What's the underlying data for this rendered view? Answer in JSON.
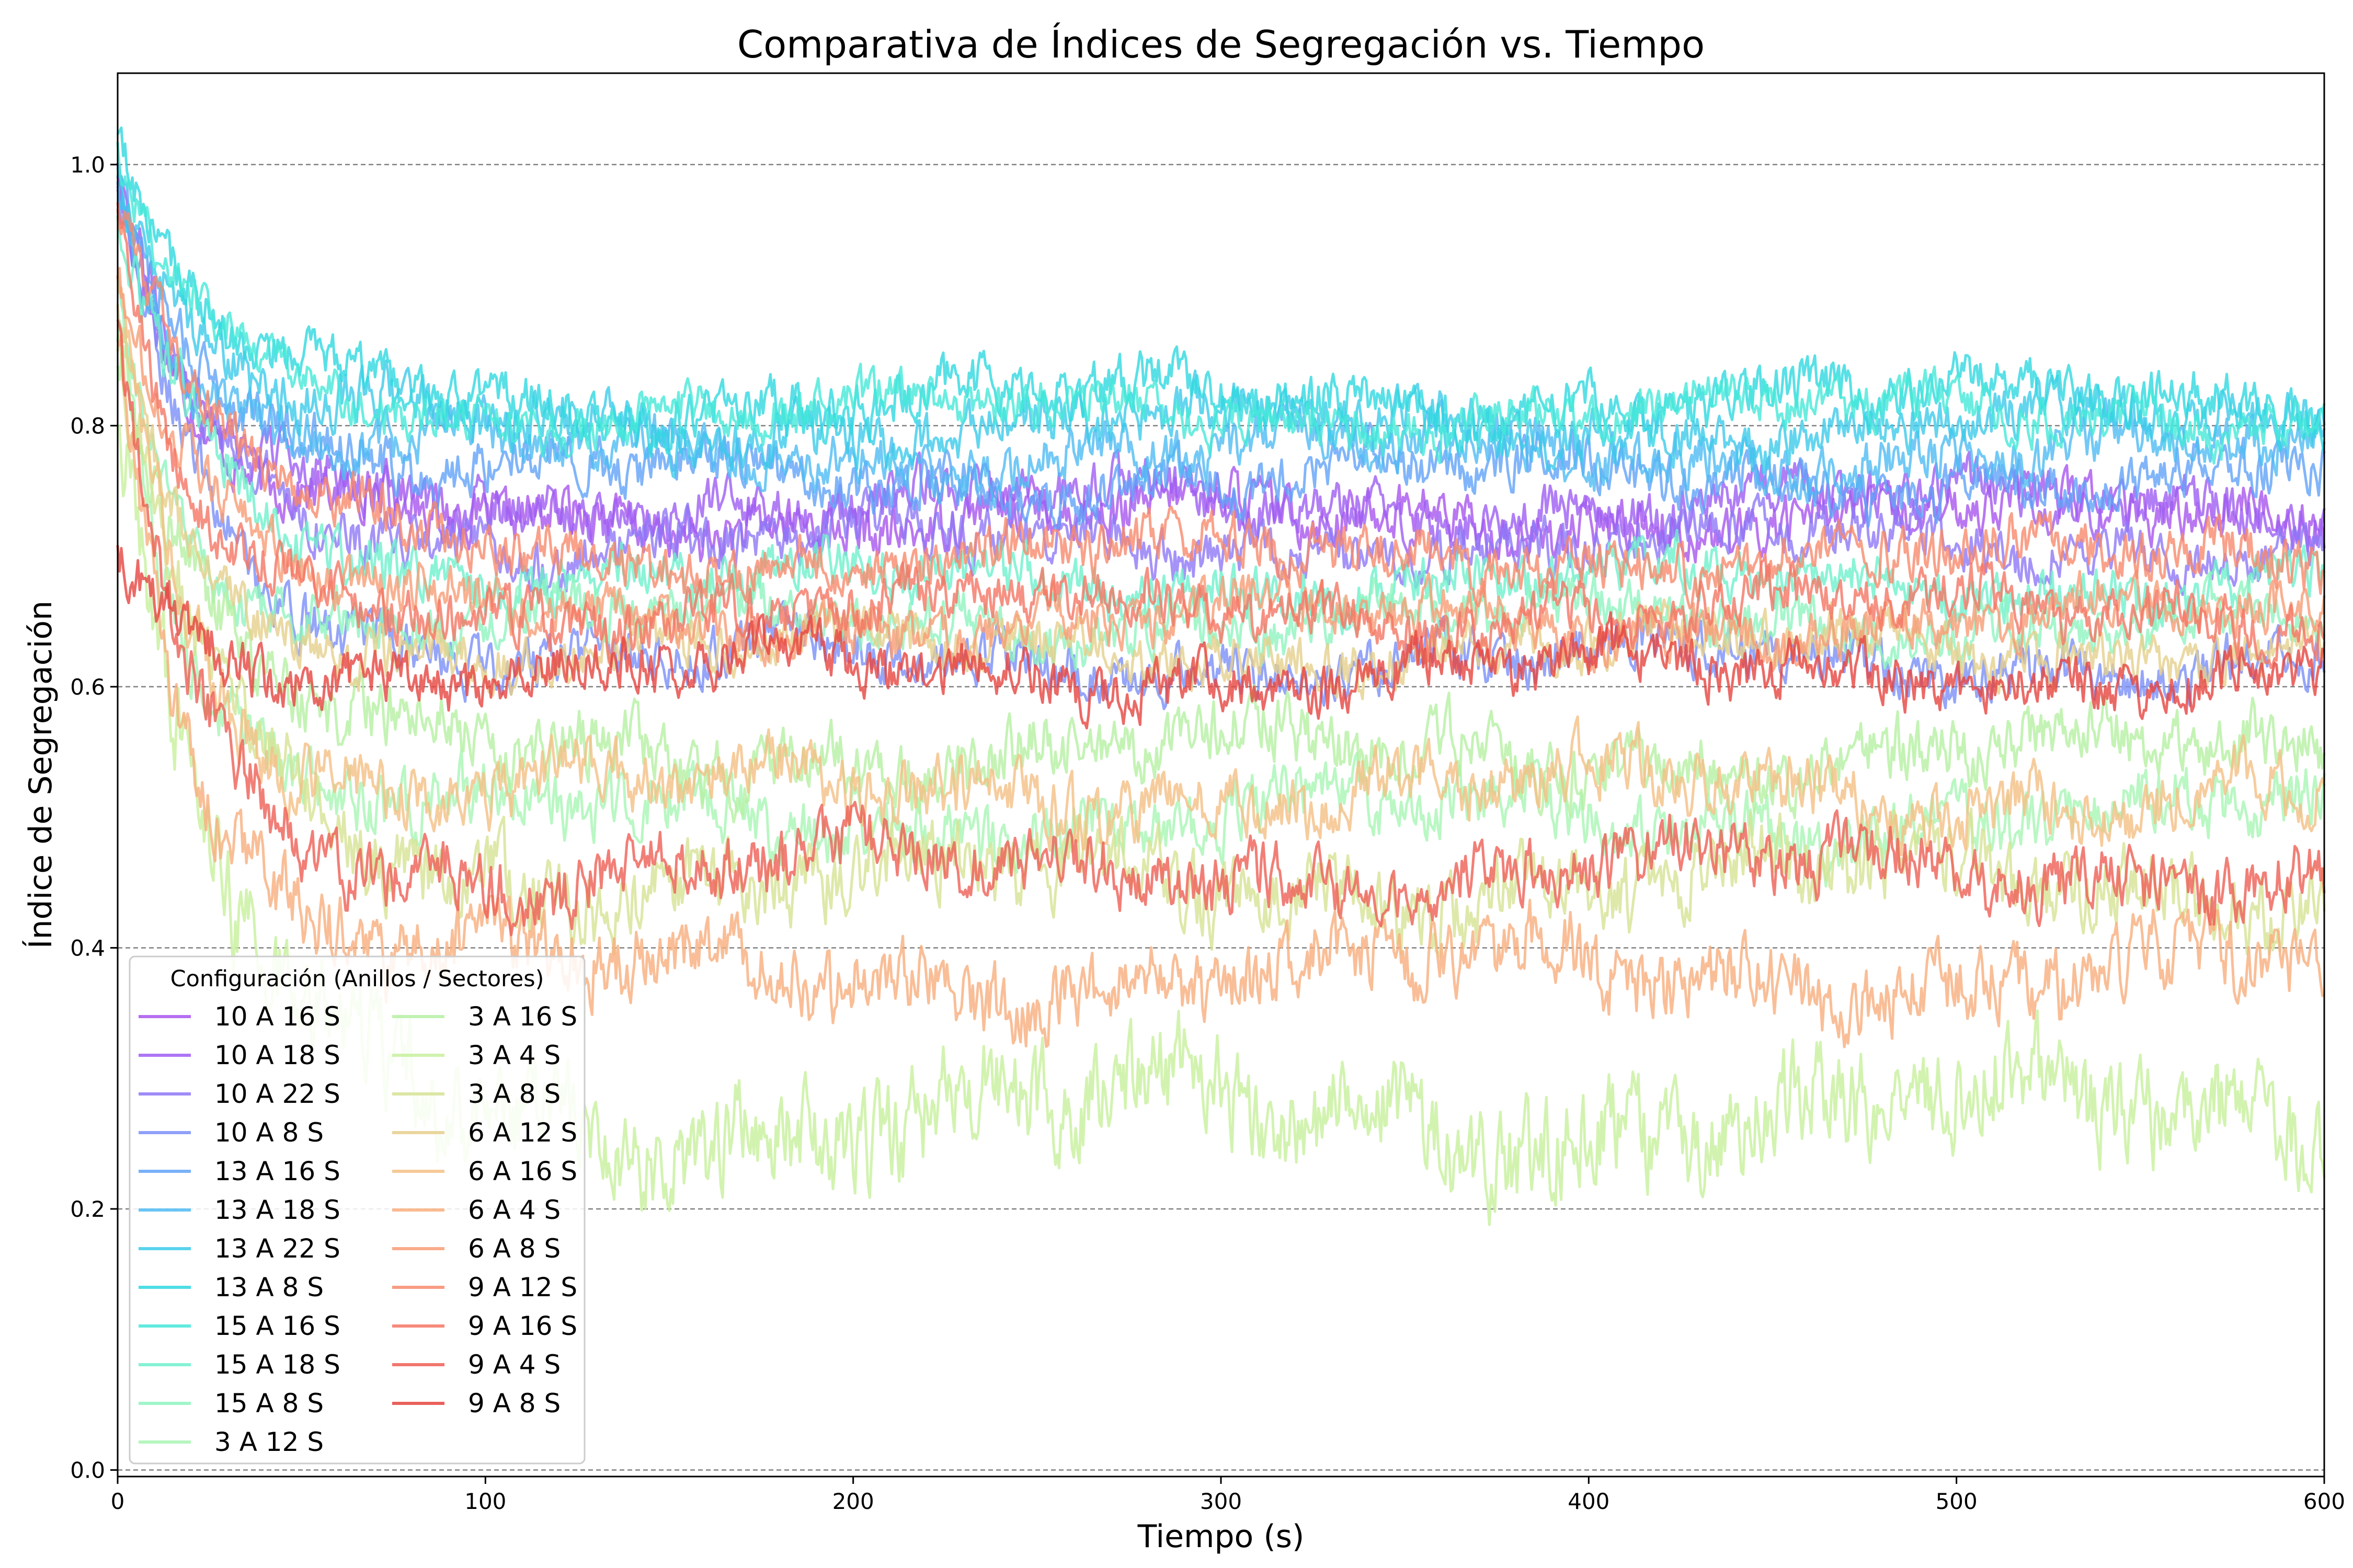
{
  "chart_data": {
    "type": "line",
    "title": "Comparativa de Índices de Segregación vs. Tiempo",
    "xlabel": "Tiempo (s)",
    "ylabel": "Índice de Segregación",
    "xlim": [
      0,
      600
    ],
    "ylim": [
      -0.005,
      1.07
    ],
    "xticks": [
      0,
      100,
      200,
      300,
      400,
      500,
      600
    ],
    "xtick_labels": [
      "0",
      "100",
      "200",
      "300",
      "400",
      "500",
      "600"
    ],
    "yticks": [
      0.0,
      0.2,
      0.4,
      0.6,
      0.8,
      1.0
    ],
    "ytick_labels": [
      "0.0",
      "0.2",
      "0.4",
      "0.6",
      "0.8",
      "1.0"
    ],
    "grid": "horizontal dashed",
    "legend": {
      "title": "Configuración (Anillos / Sectores)",
      "placement": "lower-left",
      "columns": 2
    },
    "series": [
      {
        "name": "10 A 16 S",
        "color": "#a855ee",
        "start": 0.99,
        "plateau": 0.73,
        "noise": 0.02
      },
      {
        "name": "10 A 18 S",
        "color": "#9d5ef3",
        "start": 0.99,
        "plateau": 0.74,
        "noise": 0.02
      },
      {
        "name": "10 A 22 S",
        "color": "#8e78f6",
        "start": 0.98,
        "plateau": 0.71,
        "noise": 0.02
      },
      {
        "name": "10 A 8 S",
        "color": "#7b8ff8",
        "start": 0.98,
        "plateau": 0.62,
        "noise": 0.02
      },
      {
        "name": "13 A 16 S",
        "color": "#62a3f8",
        "start": 0.99,
        "plateau": 0.76,
        "noise": 0.02
      },
      {
        "name": "13 A 18 S",
        "color": "#4fbbf2",
        "start": 1.0,
        "plateau": 0.78,
        "noise": 0.02
      },
      {
        "name": "13 A 22 S",
        "color": "#3ccbea",
        "start": 1.0,
        "plateau": 0.8,
        "noise": 0.02
      },
      {
        "name": "13 A 8 S",
        "color": "#2fd8e0",
        "start": 1.0,
        "plateau": 0.82,
        "noise": 0.02
      },
      {
        "name": "15 A 16 S",
        "color": "#45e8d8",
        "start": 1.0,
        "plateau": 0.81,
        "noise": 0.018
      },
      {
        "name": "15 A 18 S",
        "color": "#6ef0cc",
        "start": 0.95,
        "plateau": 0.68,
        "noise": 0.02
      },
      {
        "name": "15 A 8 S",
        "color": "#8ef4bf",
        "start": 0.9,
        "plateau": 0.65,
        "noise": 0.02
      },
      {
        "name": "3 A 12 S",
        "color": "#a8f5b4",
        "start": 0.9,
        "plateau": 0.5,
        "noise": 0.025
      },
      {
        "name": "3 A 16 S",
        "color": "#b5f0a3",
        "start": 0.88,
        "plateau": 0.55,
        "noise": 0.025
      },
      {
        "name": "3 A 4 S",
        "color": "#c7f09c",
        "start": 0.8,
        "plateau": 0.27,
        "noise": 0.04
      },
      {
        "name": "3 A 8 S",
        "color": "#d6e294",
        "start": 0.85,
        "plateau": 0.45,
        "noise": 0.03
      },
      {
        "name": "6 A 12 S",
        "color": "#e5cf8c",
        "start": 0.9,
        "plateau": 0.63,
        "noise": 0.02
      },
      {
        "name": "6 A 16 S",
        "color": "#f4bf85",
        "start": 0.92,
        "plateau": 0.52,
        "noise": 0.025
      },
      {
        "name": "6 A 4 S",
        "color": "#f8ae7d",
        "start": 0.88,
        "plateau": 0.38,
        "noise": 0.03
      },
      {
        "name": "6 A 8 S",
        "color": "#f89c75",
        "start": 0.93,
        "plateau": 0.65,
        "noise": 0.02
      },
      {
        "name": "9 A 12 S",
        "color": "#f78a6d",
        "start": 0.96,
        "plateau": 0.7,
        "noise": 0.02
      },
      {
        "name": "9 A 16 S",
        "color": "#f47664",
        "start": 0.95,
        "plateau": 0.66,
        "noise": 0.02
      },
      {
        "name": "9 A 4 S",
        "color": "#ee5f55",
        "start": 0.87,
        "plateau": 0.46,
        "noise": 0.025
      },
      {
        "name": "9 A 8 S",
        "color": "#e64540",
        "start": 0.7,
        "plateau": 0.61,
        "noise": 0.02
      }
    ]
  }
}
